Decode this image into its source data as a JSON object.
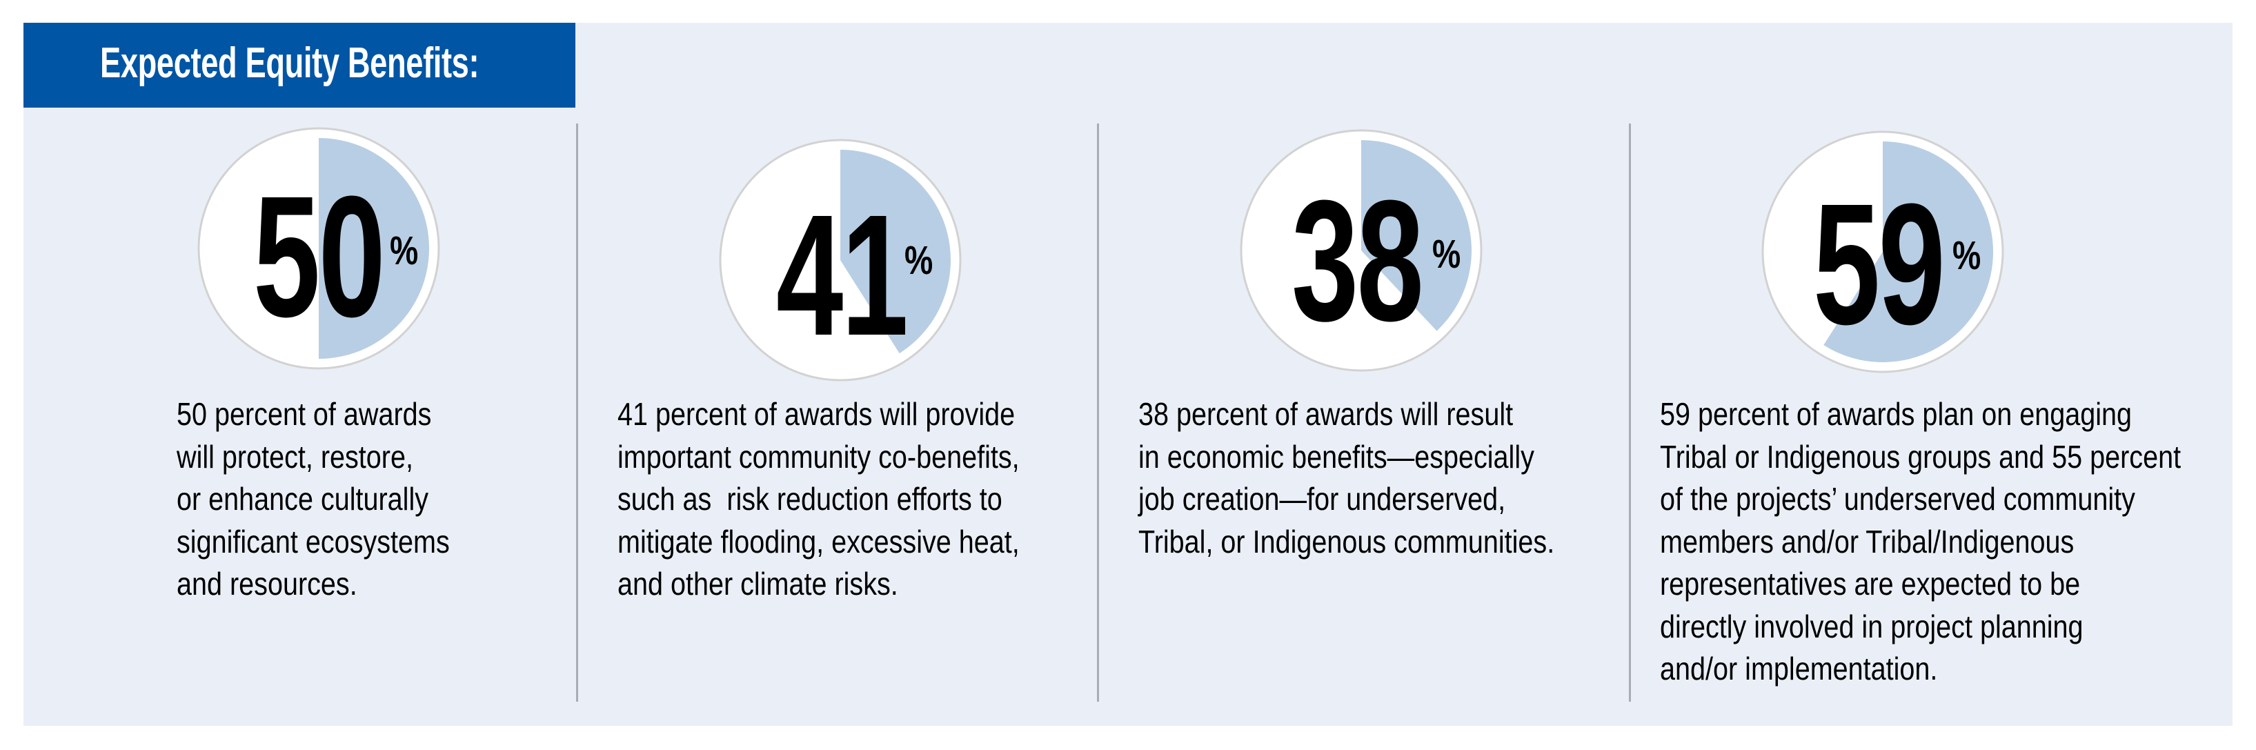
{
  "header": {
    "title": "Expected Equity Benefits:"
  },
  "colors": {
    "header_bg": "#0055A4",
    "panel_bg": "#EAEFF7",
    "pie_fill": "#B8CEE4",
    "circle_bg": "#FFFFFF",
    "divider": "#A9ADB3",
    "text": "#000000"
  },
  "stats": [
    {
      "value": "50",
      "unit": "%",
      "percent": 50,
      "lines": [
        "50 percent of awards",
        "will protect, restore,",
        "or enhance culturally",
        "significant ecosystems",
        "and resources."
      ]
    },
    {
      "value": "41",
      "unit": "%",
      "percent": 41,
      "lines": [
        "41 percent of awards will provide",
        "important community co-benefits,",
        "such as  risk reduction efforts to",
        "mitigate flooding, excessive heat,",
        "and other climate risks."
      ]
    },
    {
      "value": "38",
      "unit": "%",
      "percent": 38,
      "lines": [
        "38 percent of awards will result",
        "in economic benefits—especially",
        "job creation—for underserved,",
        "Tribal, or Indigenous communities."
      ]
    },
    {
      "value": "59",
      "unit": "%",
      "percent": 59,
      "lines": [
        "59 percent of awards plan on engaging",
        "Tribal or Indigenous groups and 55 percent",
        "of the projects’ underserved community",
        "members and/or Tribal/Indigenous",
        "representatives are expected to be",
        "directly involved in project planning",
        "and/or implementation."
      ]
    }
  ],
  "chart_data": {
    "type": "pie",
    "title": "Expected Equity Benefits:",
    "categories": [
      "Protect, restore, or enhance culturally significant ecosystems and resources",
      "Provide important community co-benefits",
      "Economic benefits for underserved, Tribal, or Indigenous communities",
      "Engage Tribal or Indigenous groups"
    ],
    "values": [
      50,
      41,
      38,
      59
    ],
    "unit": "%"
  }
}
